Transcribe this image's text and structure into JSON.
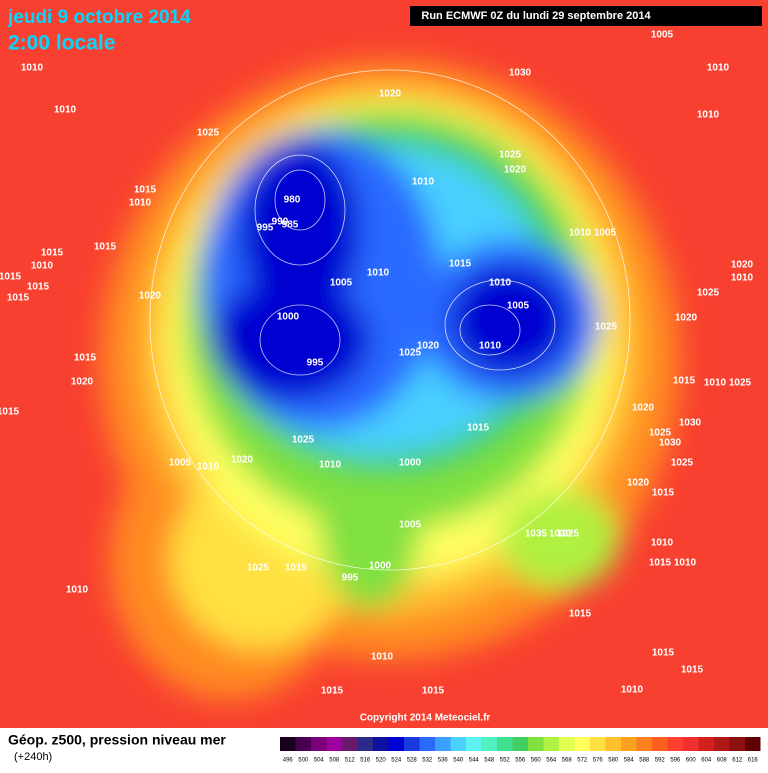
{
  "header": {
    "title": "jeudi 9 octobre 2014",
    "subtitle": "2:00 locale",
    "run": "Run ECMWF 0Z du lundi 29 septembre 2014"
  },
  "map": {
    "isobar_labels": [
      "1010",
      "1010",
      "1025",
      "1015",
      "1010",
      "1015",
      "1015",
      "1010",
      "1015",
      "1015",
      "1015",
      "1020",
      "1015",
      "1020",
      "1015",
      "980",
      "990",
      "995",
      "985",
      "1005",
      "1010",
      "1000",
      "995",
      "1025",
      "1010",
      "1020",
      "1005",
      "1010",
      "1025",
      "1015",
      "1010",
      "995",
      "1000",
      "1005",
      "1000",
      "1015",
      "1025",
      "1020",
      "1010",
      "1005",
      "1010",
      "1015",
      "1010",
      "1025",
      "1020",
      "1020",
      "1030",
      "1005",
      "1010",
      "1010",
      "1010",
      "1005",
      "1020",
      "1010",
      "1025",
      "1020",
      "1025",
      "1015",
      "1010",
      "1025",
      "1020",
      "1030",
      "1025",
      "1030",
      "1025",
      "1020",
      "1015",
      "1010",
      "1035",
      "1030",
      "1025",
      "1015",
      "1010",
      "1015",
      "1010",
      "1015",
      "1015",
      "1010",
      "1015",
      "1015"
    ],
    "copyright": "Copyright 2014 Meteociel.fr"
  },
  "footer": {
    "caption": "Géop. z500, pression niveau mer",
    "lead": "(+240h)"
  },
  "colorbar": {
    "values": [
      496,
      500,
      504,
      508,
      512,
      516,
      520,
      524,
      528,
      532,
      536,
      540,
      544,
      548,
      552,
      556,
      560,
      564,
      568,
      572,
      576,
      580,
      584,
      588,
      592,
      596,
      600,
      604,
      608,
      612,
      616
    ],
    "colors": [
      "#1a0020",
      "#4a0050",
      "#7a007a",
      "#a000a0",
      "#6a1a6a",
      "#2a2a8a",
      "#1010a0",
      "#0000d0",
      "#1a3ae0",
      "#2a6aff",
      "#3aa0ff",
      "#4ad0ff",
      "#5ff0f0",
      "#50f0c0",
      "#40e090",
      "#40d060",
      "#80e040",
      "#b0f040",
      "#e0ff50",
      "#ffff60",
      "#ffe040",
      "#ffc030",
      "#ffa020",
      "#ff8020",
      "#ff6020",
      "#ff4030",
      "#f03030",
      "#d02020",
      "#b01818",
      "#901010",
      "#600000"
    ]
  }
}
